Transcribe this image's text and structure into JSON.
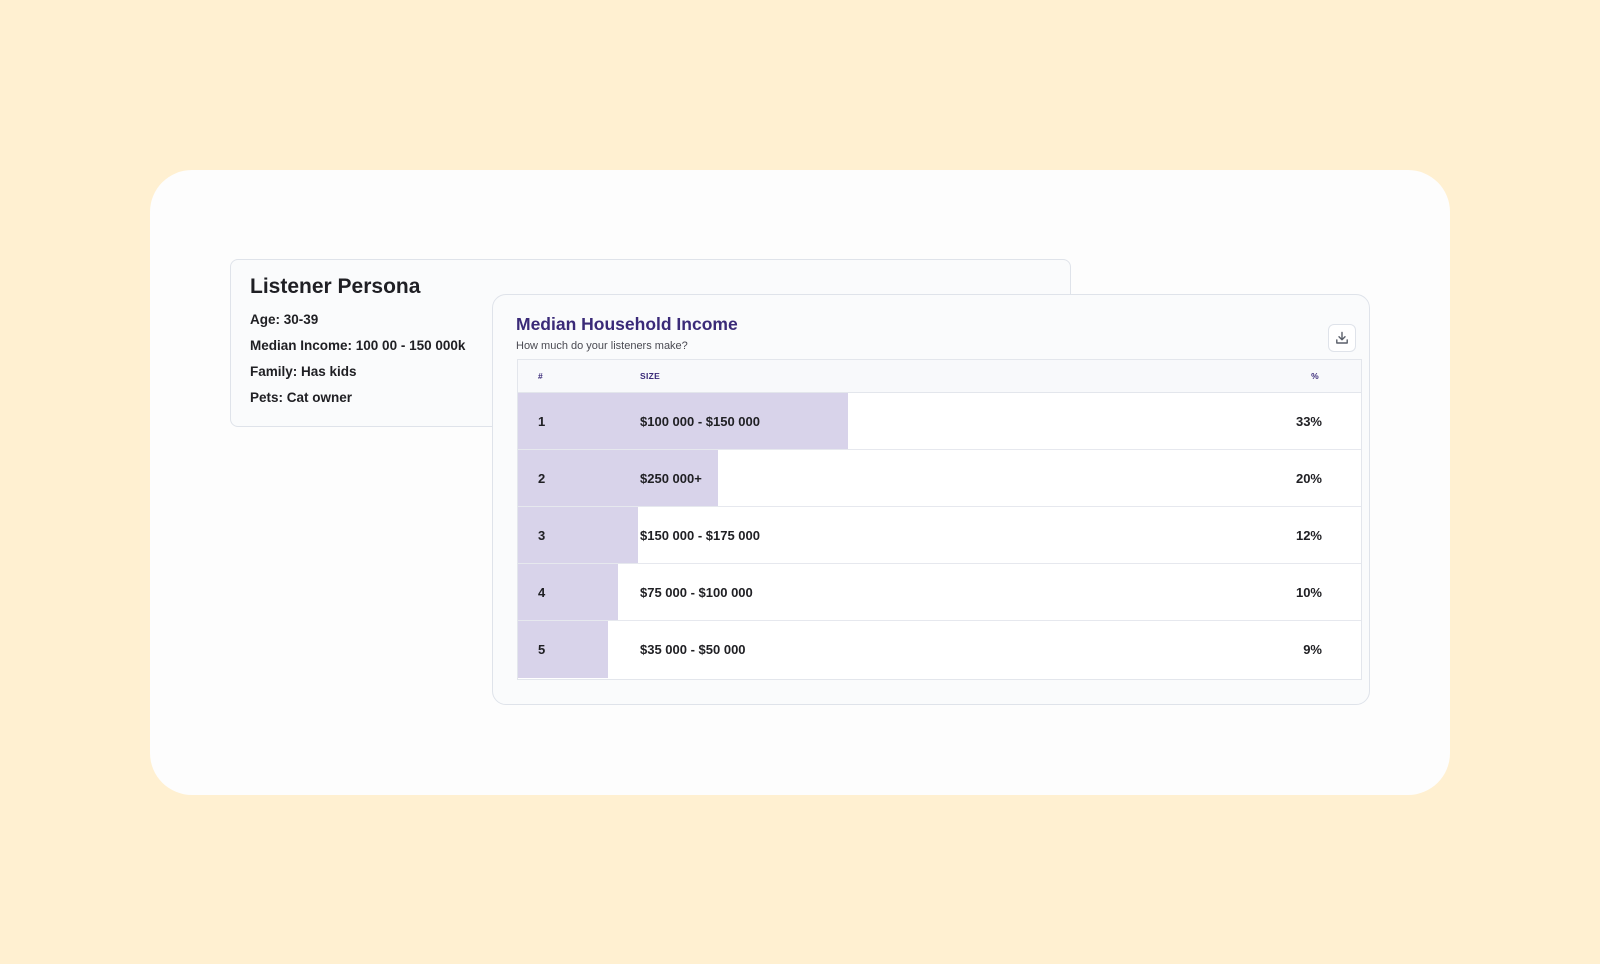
{
  "persona": {
    "title": "Listener Persona",
    "items": [
      {
        "label": "Age:",
        "value": "30-39"
      },
      {
        "label": "Median Income:",
        "value": "100 00 - 150 000k"
      },
      {
        "label": "Family:",
        "value": "Has kids"
      },
      {
        "label": "Pets:",
        "value": " Cat owner"
      }
    ]
  },
  "income": {
    "title": "Median Household Income",
    "subtitle": "How much do your listeners make?",
    "download_icon": "download-icon",
    "columns": {
      "rank": "#",
      "size": "SIZE",
      "percent": "%"
    },
    "bar_color": "#d8d3ea",
    "rows": [
      {
        "rank": "1",
        "size": "$100 000 - $150 000",
        "percent": "33%",
        "bar_share": 0.33
      },
      {
        "rank": "2",
        "size": "$250 000+",
        "percent": "20%",
        "bar_share": 0.2
      },
      {
        "rank": "3",
        "size": "$150 000 - $175 000",
        "percent": "12%",
        "bar_share": 0.12
      },
      {
        "rank": "4",
        "size": "$75 000 - $100 000",
        "percent": "10%",
        "bar_share": 0.1
      },
      {
        "rank": "5",
        "size": "$35 000 - $50 000",
        "percent": "9%",
        "bar_share": 0.09
      }
    ]
  },
  "colors": {
    "page_background": "#fff0d1",
    "title_purple": "#3a2a78",
    "bar_fill": "#d8d3ea"
  }
}
